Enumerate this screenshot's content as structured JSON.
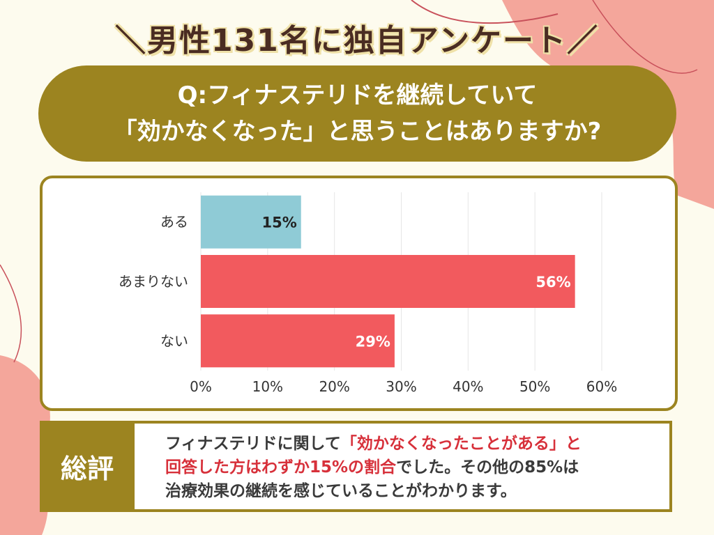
{
  "headline": "＼男性131名に独自アンケート／",
  "question": {
    "line1": "Q:フィナステリドを継続していて",
    "line2": "「効かなくなった」と思うことはありますか?"
  },
  "colors": {
    "olive": "#9c8420",
    "bar_blue": "#8fcbd6",
    "bar_red": "#f25a5e",
    "background": "#fdfbee",
    "accent_pink": "#f4a69b",
    "highlight_red": "#d7303a"
  },
  "chart_data": {
    "type": "bar",
    "orientation": "horizontal",
    "categories": [
      "ある",
      "あまりない",
      "ない"
    ],
    "values": [
      15,
      56,
      29
    ],
    "data_labels": [
      "15%",
      "56%",
      "29%"
    ],
    "bar_colors": [
      "#8fcbd6",
      "#f25a5e",
      "#f25a5e"
    ],
    "xlim": [
      0,
      60
    ],
    "x_ticks": [
      "0%",
      "10%",
      "20%",
      "30%",
      "40%",
      "50%",
      "60%"
    ],
    "grid": true
  },
  "summary": {
    "label": "総評",
    "line1_plain": "フィナステリドに関して",
    "line1_red": "「効かなくなったことがある」と",
    "line2_red": "回答した方はわずか15%の割合",
    "line2_plain": "でした。その他の85%は",
    "line3": "治療効果の継続を感じていることがわかります。"
  }
}
